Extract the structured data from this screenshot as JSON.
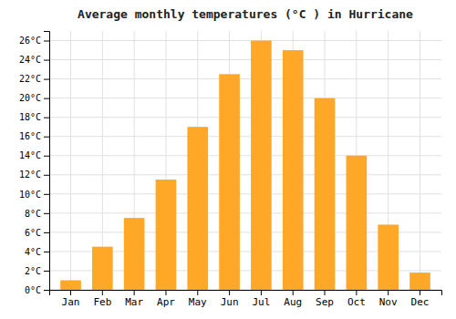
{
  "chart_data": {
    "type": "bar",
    "title": "Average monthly temperatures (°C ) in Hurricane",
    "categories": [
      "Jan",
      "Feb",
      "Mar",
      "Apr",
      "May",
      "Jun",
      "Jul",
      "Aug",
      "Sep",
      "Oct",
      "Nov",
      "Dec"
    ],
    "values": [
      1.0,
      4.5,
      7.5,
      11.5,
      17.0,
      22.5,
      26.0,
      25.0,
      20.0,
      14.0,
      6.8,
      1.8
    ],
    "color": "#FFA726",
    "ylim": [
      0,
      27
    ],
    "yticks": [
      {
        "value": 0,
        "label": "0°C"
      },
      {
        "value": 2,
        "label": "2°C"
      },
      {
        "value": 4,
        "label": "4°C"
      },
      {
        "value": 6,
        "label": "6°C"
      },
      {
        "value": 8,
        "label": "8°C"
      },
      {
        "value": 10,
        "label": "10°C"
      },
      {
        "value": 12,
        "label": "12°C"
      },
      {
        "value": 14,
        "label": "14°C"
      },
      {
        "value": 16,
        "label": "16°C"
      },
      {
        "value": 18,
        "label": "18°C"
      },
      {
        "value": 20,
        "label": "20°C"
      },
      {
        "value": 22,
        "label": "22°C"
      },
      {
        "value": 24,
        "label": "24°C"
      },
      {
        "value": 26,
        "label": "26°C"
      }
    ],
    "grid": true
  }
}
